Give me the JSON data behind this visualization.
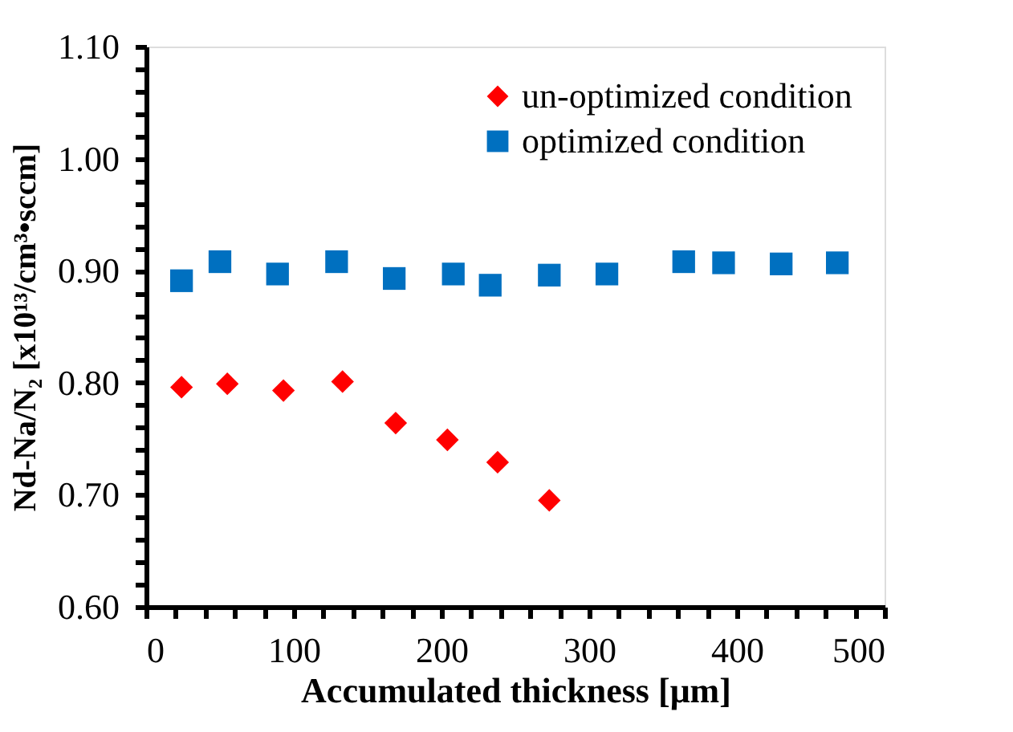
{
  "chart_data": {
    "type": "scatter",
    "xlabel": "Accumulated thickness [μm]",
    "ylabel": "Nd-Na/N₂ [x10¹³/cm³•sccm]",
    "series": [
      {
        "name": "un-optimized condition",
        "color": "#ff0000",
        "marker": "diamond",
        "x": [
          24,
          55,
          93,
          133,
          169,
          204,
          238,
          273
        ],
        "values": [
          0.796,
          0.799,
          0.793,
          0.801,
          0.764,
          0.749,
          0.729,
          0.695
        ]
      },
      {
        "name": "optimized condition",
        "color": "#0070c0",
        "marker": "square",
        "x": [
          24,
          50,
          89,
          129,
          168,
          208,
          233,
          273,
          312,
          364,
          391,
          430,
          468
        ],
        "values": [
          0.891,
          0.908,
          0.897,
          0.908,
          0.893,
          0.897,
          0.887,
          0.896,
          0.897,
          0.908,
          0.907,
          0.906,
          0.907
        ]
      }
    ],
    "xlim": [
      0,
      500
    ],
    "xticks": [
      0,
      {
        "value": 20,
        "label": null
      },
      {
        "value": 40,
        "label": null
      },
      {
        "value": 60,
        "label": null
      },
      {
        "value": 80,
        "label": null
      },
      100,
      {
        "value": 120,
        "label": null
      },
      {
        "value": 140,
        "label": null
      },
      {
        "value": 160,
        "label": null
      },
      {
        "value": 180,
        "label": null
      },
      200,
      {
        "value": 220,
        "label": null
      },
      {
        "value": 240,
        "label": null
      },
      {
        "value": 260,
        "label": null
      },
      {
        "value": 280,
        "label": null
      },
      300,
      {
        "value": 320,
        "label": null
      },
      {
        "value": 340,
        "label": null
      },
      {
        "value": 360,
        "label": null
      },
      {
        "value": 380,
        "label": null
      },
      400,
      {
        "value": 420,
        "label": null
      },
      {
        "value": 440,
        "label": null
      },
      {
        "value": 460,
        "label": null
      },
      {
        "value": 480,
        "label": null
      },
      500
    ],
    "ylim": [
      0.6,
      1.1
    ],
    "yticks": [
      {
        "value": 0.6,
        "label": "0.60"
      },
      {
        "value": 0.62,
        "label": null
      },
      {
        "value": 0.64,
        "label": null
      },
      {
        "value": 0.66,
        "label": null
      },
      {
        "value": 0.68,
        "label": null
      },
      {
        "value": 0.7,
        "label": "0.70"
      },
      {
        "value": 0.72,
        "label": null
      },
      {
        "value": 0.74,
        "label": null
      },
      {
        "value": 0.76,
        "label": null
      },
      {
        "value": 0.78,
        "label": null
      },
      {
        "value": 0.8,
        "label": "0.80"
      },
      {
        "value": 0.82,
        "label": null
      },
      {
        "value": 0.84,
        "label": null
      },
      {
        "value": 0.86,
        "label": null
      },
      {
        "value": 0.88,
        "label": null
      },
      {
        "value": 0.9,
        "label": "0.90"
      },
      {
        "value": 0.92,
        "label": null
      },
      {
        "value": 0.94,
        "label": null
      },
      {
        "value": 0.96,
        "label": null
      },
      {
        "value": 0.98,
        "label": null
      },
      {
        "value": 1.0,
        "label": "1.00"
      },
      {
        "value": 1.02,
        "label": null
      },
      {
        "value": 1.04,
        "label": null
      },
      {
        "value": 1.06,
        "label": null
      },
      {
        "value": 1.08,
        "label": null
      },
      {
        "value": 1.1,
        "label": "1.10"
      }
    ],
    "grid": false,
    "legend": "top right"
  }
}
